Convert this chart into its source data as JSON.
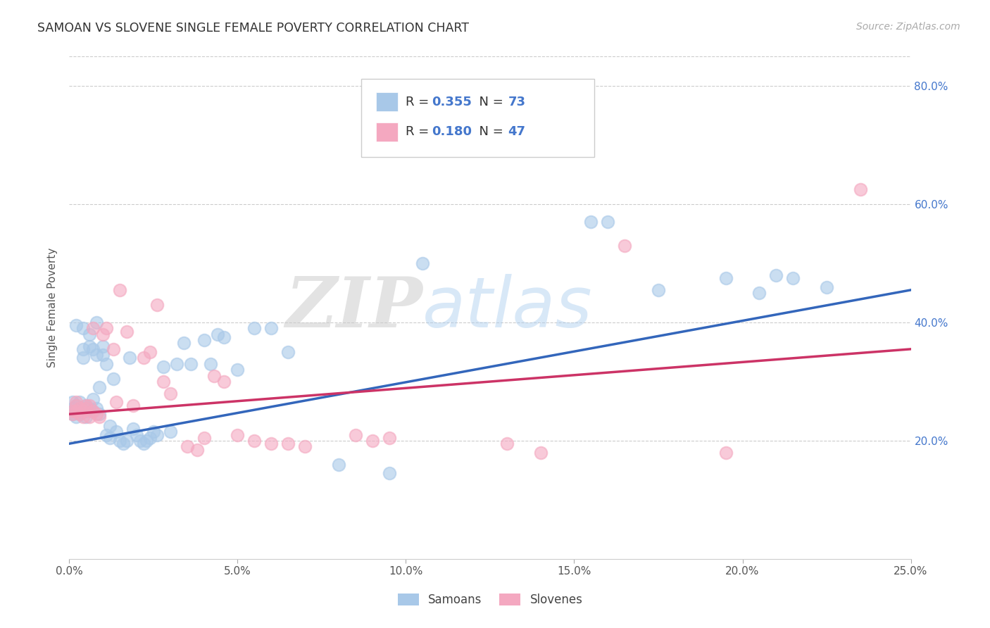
{
  "title": "SAMOAN VS SLOVENE SINGLE FEMALE POVERTY CORRELATION CHART",
  "source": "Source: ZipAtlas.com",
  "ylabel": "Single Female Poverty",
  "xlabel_ticks": [
    "0.0%",
    "5.0%",
    "10.0%",
    "15.0%",
    "20.0%",
    "25.0%"
  ],
  "ylabel_ticks": [
    "20.0%",
    "40.0%",
    "60.0%",
    "80.0%"
  ],
  "xlim": [
    0.0,
    0.25
  ],
  "ylim": [
    0.0,
    0.85
  ],
  "samoans_R": 0.355,
  "samoans_N": 73,
  "slovenes_R": 0.18,
  "slovenes_N": 47,
  "samoan_color": "#A8C8E8",
  "slovene_color": "#F4A8C0",
  "samoan_line_color": "#3366BB",
  "slovene_line_color": "#CC3366",
  "watermark_zip": "ZIP",
  "watermark_atlas": "atlas",
  "bg_color": "#FFFFFF",
  "samoans_x": [
    0.001,
    0.001,
    0.001,
    0.002,
    0.002,
    0.002,
    0.002,
    0.003,
    0.003,
    0.003,
    0.003,
    0.004,
    0.004,
    0.004,
    0.005,
    0.005,
    0.005,
    0.005,
    0.006,
    0.006,
    0.006,
    0.007,
    0.007,
    0.007,
    0.008,
    0.008,
    0.008,
    0.009,
    0.009,
    0.01,
    0.01,
    0.011,
    0.011,
    0.012,
    0.012,
    0.013,
    0.014,
    0.015,
    0.016,
    0.017,
    0.018,
    0.019,
    0.02,
    0.021,
    0.022,
    0.023,
    0.024,
    0.025,
    0.026,
    0.028,
    0.03,
    0.032,
    0.034,
    0.036,
    0.04,
    0.042,
    0.044,
    0.046,
    0.05,
    0.055,
    0.06,
    0.065,
    0.08,
    0.095,
    0.105,
    0.155,
    0.16,
    0.175,
    0.195,
    0.205,
    0.21,
    0.215,
    0.225
  ],
  "samoans_y": [
    0.255,
    0.265,
    0.245,
    0.26,
    0.25,
    0.24,
    0.395,
    0.245,
    0.265,
    0.255,
    0.25,
    0.39,
    0.355,
    0.34,
    0.26,
    0.25,
    0.24,
    0.255,
    0.38,
    0.36,
    0.255,
    0.355,
    0.27,
    0.25,
    0.4,
    0.345,
    0.255,
    0.29,
    0.245,
    0.36,
    0.345,
    0.21,
    0.33,
    0.205,
    0.225,
    0.305,
    0.215,
    0.2,
    0.195,
    0.2,
    0.34,
    0.22,
    0.21,
    0.2,
    0.195,
    0.2,
    0.205,
    0.215,
    0.21,
    0.325,
    0.215,
    0.33,
    0.365,
    0.33,
    0.37,
    0.33,
    0.38,
    0.375,
    0.32,
    0.39,
    0.39,
    0.35,
    0.16,
    0.145,
    0.5,
    0.57,
    0.57,
    0.455,
    0.475,
    0.45,
    0.48,
    0.475,
    0.46
  ],
  "slovenes_x": [
    0.001,
    0.001,
    0.002,
    0.002,
    0.002,
    0.003,
    0.003,
    0.004,
    0.004,
    0.005,
    0.005,
    0.006,
    0.006,
    0.007,
    0.007,
    0.008,
    0.009,
    0.01,
    0.011,
    0.013,
    0.014,
    0.015,
    0.017,
    0.019,
    0.022,
    0.024,
    0.026,
    0.028,
    0.03,
    0.035,
    0.038,
    0.04,
    0.043,
    0.046,
    0.05,
    0.055,
    0.06,
    0.065,
    0.07,
    0.085,
    0.09,
    0.095,
    0.13,
    0.14,
    0.165,
    0.195,
    0.235
  ],
  "slovenes_y": [
    0.25,
    0.245,
    0.265,
    0.26,
    0.25,
    0.255,
    0.245,
    0.24,
    0.25,
    0.255,
    0.26,
    0.24,
    0.26,
    0.25,
    0.39,
    0.245,
    0.24,
    0.38,
    0.39,
    0.355,
    0.265,
    0.455,
    0.385,
    0.26,
    0.34,
    0.35,
    0.43,
    0.3,
    0.28,
    0.19,
    0.185,
    0.205,
    0.31,
    0.3,
    0.21,
    0.2,
    0.195,
    0.195,
    0.19,
    0.21,
    0.2,
    0.205,
    0.195,
    0.18,
    0.53,
    0.18,
    0.625
  ],
  "trend_samoan_x0": 0.0,
  "trend_samoan_y0": 0.195,
  "trend_samoan_x1": 0.25,
  "trend_samoan_y1": 0.455,
  "trend_slovene_x0": 0.0,
  "trend_slovene_y0": 0.245,
  "trend_slovene_x1": 0.25,
  "trend_slovene_y1": 0.355
}
